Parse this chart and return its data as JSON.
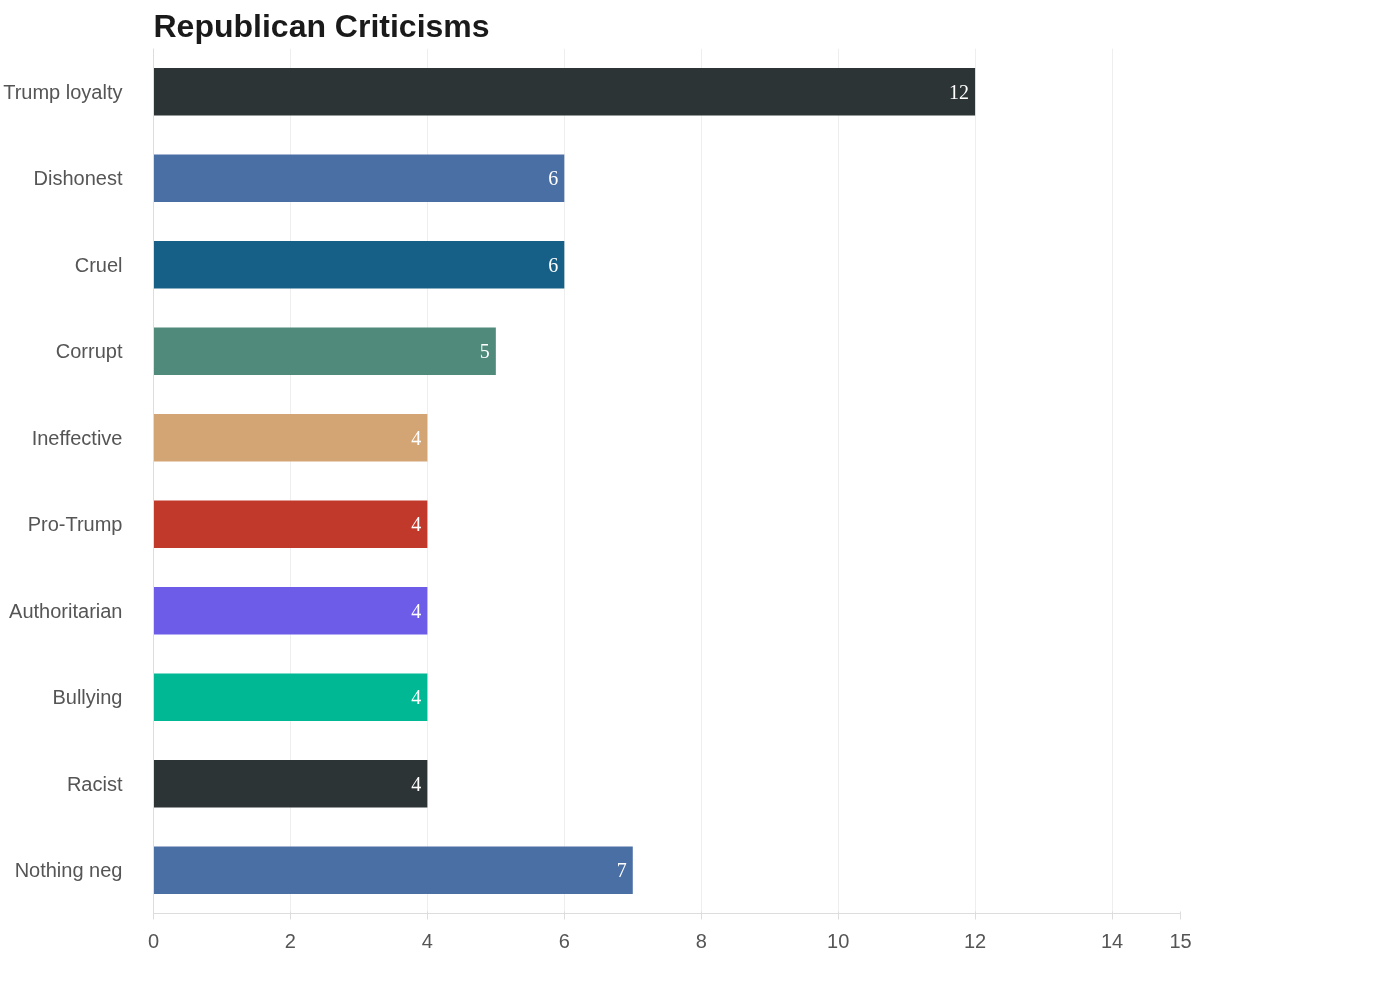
{
  "chart_data": {
    "type": "bar",
    "orientation": "horizontal",
    "title": "Republican Criticisms",
    "categories": [
      "Trump loyalty",
      "Dishonest",
      "Cruel",
      "Corrupt",
      "Ineffective",
      "Pro-Trump",
      "Authoritarian",
      "Bullying",
      "Racist",
      "Nothing neg"
    ],
    "values": [
      12,
      6,
      6,
      5,
      4,
      4,
      4,
      4,
      4,
      7
    ],
    "colors": [
      "#2d3436",
      "#4a6fa5",
      "#166088",
      "#4f8a7a",
      "#d4a574",
      "#c0392b",
      "#6c5ce7",
      "#00b894",
      "#2d3436",
      "#4a6fa5"
    ],
    "xlim": [
      0,
      15
    ],
    "xticks": [
      0,
      2,
      4,
      6,
      8,
      10,
      12,
      14,
      15
    ],
    "grid": "x",
    "data_labels": true
  }
}
